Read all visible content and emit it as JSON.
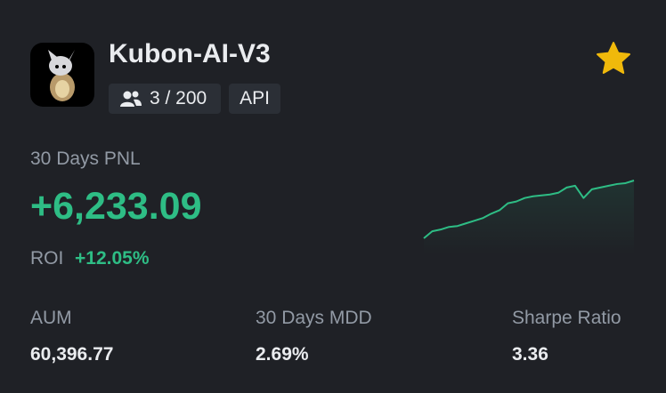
{
  "header": {
    "title": "Kubon-AI-V3",
    "followers": "3 / 200",
    "tag": "API"
  },
  "pnl": {
    "label": "30 Days PNL",
    "value": "+6,233.09"
  },
  "roi": {
    "label": "ROI",
    "value": "+12.05%"
  },
  "stats": [
    {
      "label": "AUM",
      "value": "60,396.77"
    },
    {
      "label": "30 Days MDD",
      "value": "2.69%"
    },
    {
      "label": "Sharpe Ratio",
      "value": "3.36"
    }
  ],
  "sparkline": {
    "type": "line",
    "color": "#2ebd85",
    "values": [
      2,
      10,
      12,
      15,
      16,
      19,
      22,
      25,
      30,
      34,
      42,
      44,
      48,
      50,
      51,
      52,
      54,
      60,
      62,
      48,
      58,
      60,
      62,
      64,
      65,
      68
    ]
  }
}
